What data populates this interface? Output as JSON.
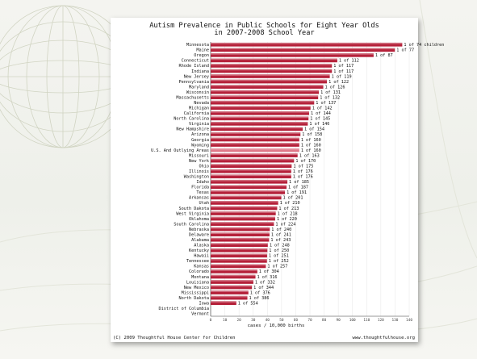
{
  "chart_data": {
    "type": "bar",
    "orientation": "horizontal",
    "title": "Autism Prevalence in Public Schools for Eight Year Olds",
    "subtitle": "in 2007-2008 School Year",
    "xlabel": "cases / 10,000 births",
    "xlim": [
      0,
      140
    ],
    "x_ticks": [
      0,
      10,
      20,
      30,
      40,
      50,
      60,
      70,
      80,
      90,
      100,
      110,
      120,
      130,
      140
    ],
    "colors": {
      "bar": "#b5213a",
      "bar_highlight": "#e07a8a"
    },
    "categories": [
      "Minnesota",
      "Maine",
      "Oregon",
      "Connecticut",
      "Rhode Island",
      "Indiana",
      "New Jersey",
      "Pennsylvania",
      "Maryland",
      "Wisconsin",
      "Massachusetts",
      "Nevada",
      "Michigan",
      "California",
      "North Carolina",
      "Virginia",
      "New Hampshire",
      "Arizona",
      "Georgia",
      "Wyoming",
      "U.S. And Outlying Areas",
      "Missouri",
      "New York",
      "Ohio",
      "Illinois",
      "Washington",
      "Idaho",
      "Florida",
      "Texas",
      "Arkansas",
      "Utah",
      "South Dakota",
      "West Virginia",
      "Oklahoma",
      "South Carolina",
      "Nebraska",
      "Delaware",
      "Alabama",
      "Alaska",
      "Kentucky",
      "Hawaii",
      "Tennessee",
      "Kansas",
      "Colorado",
      "Montana",
      "Louisiana",
      "New Mexico",
      "Mississippi",
      "North Dakota",
      "Iowa",
      "District of Columbia",
      "Vermont"
    ],
    "values": [
      135.1,
      129.9,
      114.9,
      89.3,
      85.5,
      85.5,
      84.0,
      82.0,
      79.4,
      76.3,
      75.8,
      73.0,
      70.4,
      69.4,
      69.0,
      68.5,
      64.9,
      63.3,
      62.5,
      62.5,
      62.5,
      61.3,
      58.8,
      57.1,
      56.8,
      56.8,
      54.1,
      53.5,
      52.4,
      49.8,
      47.6,
      46.9,
      45.9,
      45.5,
      44.6,
      41.7,
      41.5,
      41.2,
      40.3,
      40.0,
      39.8,
      39.7,
      38.9,
      32.9,
      31.6,
      30.1,
      29.1,
      26.6,
      25.9,
      18.1,
      0,
      0
    ],
    "value_labels": [
      "1 of 74 children",
      "1 of 77",
      "1 of 87",
      "1 of 112",
      "1 of 117",
      "1 of 117",
      "1 of 119",
      "1 of 122",
      "1 of 126",
      "1 of 131",
      "1 of 132",
      "1 of 137",
      "1 of 142",
      "1 of 144",
      "1 of 145",
      "1 of 146",
      "1 of 154",
      "1 of 158",
      "1 of 160",
      "1 of 160",
      "1 of 160",
      "1 of 163",
      "1 of 170",
      "1 of 175",
      "1 of 176",
      "1 of 176",
      "1 of 185",
      "1 of 187",
      "1 of 191",
      "1 of 201",
      "1 of 210",
      "1 of 213",
      "1 of 218",
      "1 of 220",
      "1 of 224",
      "1 of 240",
      "1 of 241",
      "1 of 243",
      "1 of 248",
      "1 of 250",
      "1 of 251",
      "1 of 252",
      "1 of 257",
      "1 of 304",
      "1 of 316",
      "1 of 332",
      "1 of 344",
      "1 of 376",
      "1 of 386",
      "1 of 554",
      "",
      ""
    ],
    "highlight_category": "U.S. And Outlying Areas",
    "footer_left": "(C) 2009 Thoughtful House Center for Children",
    "footer_right": "www.thoughtfulhouse.org"
  }
}
